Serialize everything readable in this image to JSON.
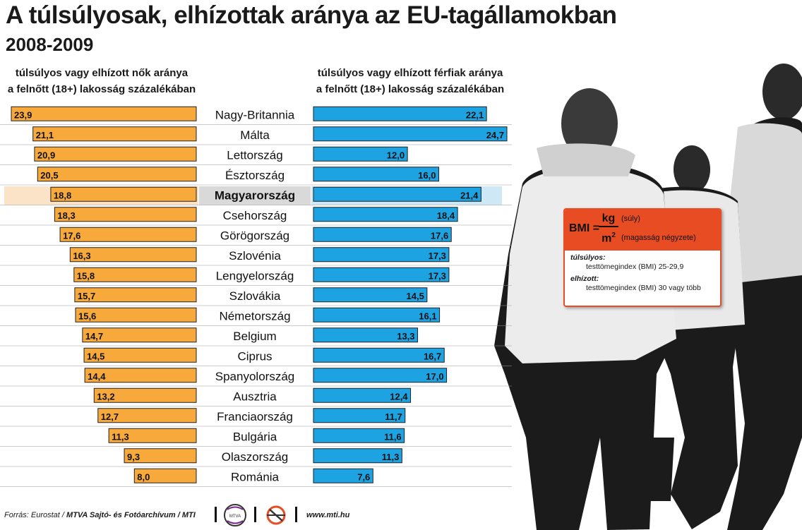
{
  "header": {
    "title": "A túlsúlyosak, elhízottak aránya az EU-tagállamokban",
    "subtitle": "2008-2009",
    "women_head_line1": "túlsúlyos vagy elhízott nők aránya",
    "women_head_line2": "a felnőtt (18+) lakosság százalékában",
    "men_head_line1": "túlsúlyos vagy elhízott férfiak aránya",
    "men_head_line2": "a felnőtt (18+) lakosság százalékában"
  },
  "chart_data": {
    "type": "bar",
    "categories": [
      "Nagy-Britannia",
      "Málta",
      "Lettország",
      "Észtország",
      "Magyarország",
      "Csehország",
      "Görögország",
      "Szlovénia",
      "Lengyelország",
      "Szlovákia",
      "Németország",
      "Belgium",
      "Ciprus",
      "Spanyolország",
      "Ausztria",
      "Franciaország",
      "Bulgária",
      "Olaszország",
      "Románia"
    ],
    "highlight": "Magyarország",
    "series": [
      {
        "key": "women",
        "values": [
          23.9,
          21.1,
          20.9,
          20.5,
          18.8,
          18.3,
          17.6,
          16.3,
          15.8,
          15.7,
          15.6,
          14.7,
          14.5,
          14.4,
          13.2,
          12.7,
          11.3,
          9.3,
          8.0
        ],
        "labels": [
          "23,9",
          "21,1",
          "20,9",
          "20,5",
          "18,8",
          "18,3",
          "17,6",
          "16,3",
          "15,8",
          "15,7",
          "15,6",
          "14,7",
          "14,5",
          "14,4",
          "13,2",
          "12,7",
          "11,3",
          "9,3",
          "8,0"
        ],
        "color": "#f7a93b",
        "direction": "left"
      },
      {
        "key": "men",
        "values": [
          22.1,
          24.7,
          12.0,
          16.0,
          21.4,
          18.4,
          17.6,
          17.3,
          17.3,
          14.5,
          16.1,
          13.3,
          16.7,
          17.0,
          12.4,
          11.7,
          11.6,
          11.3,
          7.6
        ],
        "labels": [
          "22,1",
          "24,7",
          "12,0",
          "16,0",
          "21,4",
          "18,4",
          "17,6",
          "17,3",
          "17,3",
          "14,5",
          "16,1",
          "13,3",
          "16,7",
          "17,0",
          "12,4",
          "11,7",
          "11,6",
          "11,3",
          "7,6"
        ],
        "color": "#1ea3e2",
        "direction": "right"
      }
    ]
  },
  "bmi": {
    "label": "BMI =",
    "numerator": "kg",
    "denominator": "m",
    "exponent": "2",
    "numerator_note": "(súly)",
    "denominator_note": "(magasság négyzete)",
    "overweight_term": "túlsúlyos:",
    "overweight_def": "testtömegindex (BMI) 25-29,9",
    "obese_term": "elhízott:",
    "obese_def": "testtömegindex (BMI) 30 vagy több"
  },
  "footer": {
    "source_prefix": "Forrás: Eurostat / ",
    "source_bold": "MTVA Sajtó- és Fotóarchívum / MTI",
    "logo_text": "MTVA",
    "website": "www.mti.hu"
  },
  "colors": {
    "women": "#f7a93b",
    "men": "#1ea3e2",
    "bmi_accent": "#e84c22",
    "silhouette": "#1b1b1b",
    "clothing": "#e9e9e9"
  }
}
